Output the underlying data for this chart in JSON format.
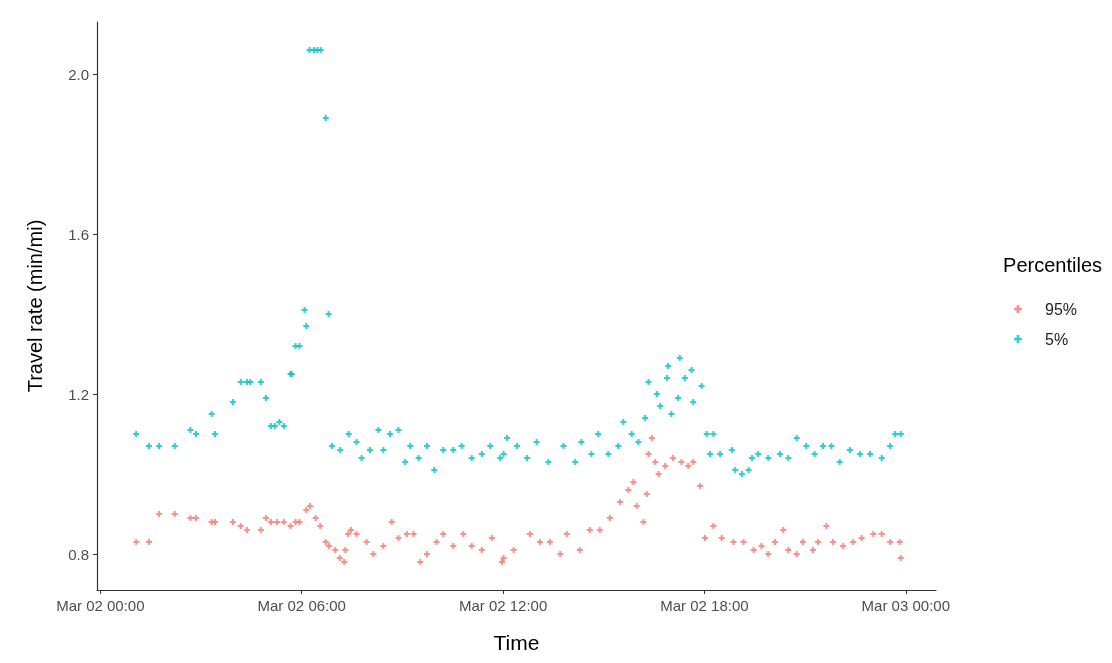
{
  "chart_data": {
    "type": "scatter",
    "xlabel": "Time",
    "ylabel": "Travel rate (min/mi)",
    "legend_title": "Percentiles",
    "legend": "right",
    "marker": "cross",
    "xlim": [
      "--03-01T23:54",
      "--03-03T00:54"
    ],
    "xticks": [
      {
        "value": "--03-02T00:00",
        "label": "Mar 02 00:00"
      },
      {
        "value": "--03-02T06:00",
        "label": "Mar 02 06:00"
      },
      {
        "value": "--03-02T12:00",
        "label": "Mar 02 12:00"
      },
      {
        "value": "--03-02T18:00",
        "label": "Mar 02 18:00"
      },
      {
        "value": "--03-03T00:00",
        "label": "Mar 03 00:00"
      }
    ],
    "ylim": [
      0.71,
      2.13
    ],
    "yticks": [
      0.8,
      1.2,
      1.6,
      {
        "value": 2,
        "label": "2.0"
      }
    ],
    "series": [
      {
        "name": "95%",
        "color": "#f8766d",
        "x": [
          "--03-02T01:04",
          "--03-02T01:27",
          "--03-02T01:45",
          "--03-02T02:13",
          "--03-02T02:41",
          "--03-02T02:51",
          "--03-02T03:19",
          "--03-02T03:25",
          "--03-02T03:57",
          "--03-02T04:11",
          "--03-02T04:22",
          "--03-02T04:47",
          "--03-02T04:56",
          "--03-02T05:05",
          "--03-02T05:16",
          "--03-02T05:28",
          "--03-02T05:40",
          "--03-02T05:49",
          "--03-02T05:56",
          "--03-02T06:08",
          "--03-02T06:15",
          "--03-02T06:25",
          "--03-02T06:33",
          "--03-02T06:43",
          "--03-02T06:49",
          "--03-02T07:00",
          "--03-02T07:08",
          "--03-02T07:16",
          "--03-02T07:18",
          "--03-02T07:23",
          "--03-02T07:28",
          "--03-02T07:38",
          "--03-02T07:56",
          "--03-02T08:08",
          "--03-02T08:26",
          "--03-02T08:41",
          "--03-02T08:53",
          "--03-02T09:08",
          "--03-02T09:20",
          "--03-02T09:32",
          "--03-02T09:44",
          "--03-02T10:01",
          "--03-02T10:13",
          "--03-02T10:31",
          "--03-02T10:49",
          "--03-02T11:04",
          "--03-02T11:22",
          "--03-02T11:40",
          "--03-02T11:58",
          "--03-02T12:01",
          "--03-02T12:19",
          "--03-02T12:48",
          "--03-02T13:06",
          "--03-02T13:24",
          "--03-02T13:42",
          "--03-02T13:54",
          "--03-02T14:17",
          "--03-02T14:35",
          "--03-02T14:53",
          "--03-02T15:11",
          "--03-02T15:29",
          "--03-02T15:44",
          "--03-02T15:53",
          "--03-02T15:59",
          "--03-02T16:11",
          "--03-02T16:17",
          "--03-02T16:20",
          "--03-02T16:26",
          "--03-02T16:32",
          "--03-02T16:38",
          "--03-02T16:50",
          "--03-02T17:04",
          "--03-02T17:19",
          "--03-02T17:31",
          "--03-02T17:40",
          "--03-02T17:52",
          "--03-02T18:01",
          "--03-02T18:16",
          "--03-02T18:31",
          "--03-02T18:52",
          "--03-02T19:10",
          "--03-02T19:28",
          "--03-02T19:42",
          "--03-02T19:54",
          "--03-02T20:06",
          "--03-02T20:21",
          "--03-02T20:30",
          "--03-02T20:45",
          "--03-02T20:56",
          "--03-02T21:14",
          "--03-02T21:23",
          "--03-02T21:38",
          "--03-02T21:50",
          "--03-02T22:08",
          "--03-02T22:26",
          "--03-02T22:41",
          "--03-02T23:02",
          "--03-02T23:17",
          "--03-02T23:32",
          "--03-02T23:49",
          "--03-02T23:51"
        ],
        "values": [
          0.83,
          0.83,
          0.9,
          0.9,
          0.89,
          0.89,
          0.88,
          0.88,
          0.88,
          0.87,
          0.86,
          0.86,
          0.89,
          0.88,
          0.88,
          0.88,
          0.87,
          0.88,
          0.88,
          0.91,
          0.92,
          0.89,
          0.87,
          0.83,
          0.82,
          0.81,
          0.79,
          0.78,
          0.81,
          0.85,
          0.86,
          0.85,
          0.83,
          0.8,
          0.82,
          0.88,
          0.84,
          0.85,
          0.85,
          0.78,
          0.8,
          0.83,
          0.85,
          0.82,
          0.85,
          0.82,
          0.81,
          0.84,
          0.78,
          0.79,
          0.81,
          0.85,
          0.83,
          0.83,
          0.8,
          0.85,
          0.81,
          0.86,
          0.86,
          0.89,
          0.93,
          0.96,
          0.98,
          0.92,
          0.88,
          0.95,
          1.05,
          1.09,
          1.03,
          1.0,
          1.02,
          1.04,
          1.03,
          1.02,
          1.03,
          0.97,
          0.84,
          0.87,
          0.84,
          0.83,
          0.83,
          0.81,
          0.82,
          0.8,
          0.83,
          0.86,
          0.81,
          0.8,
          0.83,
          0.81,
          0.83,
          0.87,
          0.83,
          0.82,
          0.83,
          0.84,
          0.85,
          0.85,
          0.83,
          0.83,
          0.79
        ]
      },
      {
        "name": "5%",
        "color": "#00bfc4",
        "x": [
          "--03-02T01:04",
          "--03-02T01:27",
          "--03-02T01:45",
          "--03-02T02:13",
          "--03-02T02:41",
          "--03-02T02:51",
          "--03-02T03:19",
          "--03-02T03:25",
          "--03-02T03:57",
          "--03-02T04:11",
          "--03-02T04:22",
          "--03-02T04:28",
          "--03-02T04:47",
          "--03-02T04:56",
          "--03-02T05:05",
          "--03-02T05:12",
          "--03-02T05:20",
          "--03-02T05:28",
          "--03-02T05:40",
          "--03-02T05:42",
          "--03-02T05:49",
          "--03-02T05:56",
          "--03-02T06:05",
          "--03-02T06:08",
          "--03-02T06:14",
          "--03-02T06:22",
          "--03-02T06:28",
          "--03-02T06:34",
          "--03-02T06:43",
          "--03-02T06:48",
          "--03-02T06:54",
          "--03-02T07:09",
          "--03-02T07:24",
          "--03-02T07:38",
          "--03-02T07:47",
          "--03-02T08:02",
          "--03-02T08:17",
          "--03-02T08:26",
          "--03-02T08:38",
          "--03-02T08:53",
          "--03-02T09:05",
          "--03-02T09:14",
          "--03-02T09:29",
          "--03-02T09:44",
          "--03-02T09:57",
          "--03-02T10:13",
          "--03-02T10:31",
          "--03-02T10:46",
          "--03-02T11:04",
          "--03-02T11:22",
          "--03-02T11:37",
          "--03-02T11:55",
          "--03-02T12:01",
          "--03-02T12:07",
          "--03-02T12:25",
          "--03-02T12:43",
          "--03-02T13:00",
          "--03-02T13:21",
          "--03-02T13:48",
          "--03-02T14:09",
          "--03-02T14:20",
          "--03-02T14:38",
          "--03-02T14:50",
          "--03-02T15:08",
          "--03-02T15:26",
          "--03-02T15:35",
          "--03-02T15:50",
          "--03-02T16:02",
          "--03-02T16:14",
          "--03-02T16:20",
          "--03-02T16:35",
          "--03-02T16:41",
          "--03-02T16:53",
          "--03-02T16:55",
          "--03-02T17:01",
          "--03-02T17:13",
          "--03-02T17:16",
          "--03-02T17:25",
          "--03-02T17:37",
          "--03-02T17:40",
          "--03-02T17:55",
          "--03-02T18:04",
          "--03-02T18:10",
          "--03-02T18:16",
          "--03-02T18:28",
          "--03-02T18:49",
          "--03-02T18:55",
          "--03-02T19:07",
          "--03-02T19:19",
          "--03-02T19:25",
          "--03-02T19:36",
          "--03-02T19:54",
          "--03-02T20:15",
          "--03-02T20:30",
          "--03-02T20:45",
          "--03-02T21:02",
          "--03-02T21:17",
          "--03-02T21:32",
          "--03-02T21:47",
          "--03-02T22:02",
          "--03-02T22:20",
          "--03-02T22:38",
          "--03-02T22:56",
          "--03-02T23:17",
          "--03-02T23:32",
          "--03-02T23:41",
          "--03-02T23:51"
        ],
        "values": [
          1.1,
          1.07,
          1.07,
          1.07,
          1.11,
          1.1,
          1.15,
          1.1,
          1.18,
          1.23,
          1.23,
          1.23,
          1.23,
          1.19,
          1.12,
          1.12,
          1.13,
          1.12,
          1.25,
          1.25,
          1.32,
          1.32,
          1.41,
          1.37,
          2.06,
          2.06,
          2.06,
          2.06,
          1.89,
          1.4,
          1.07,
          1.06,
          1.1,
          1.08,
          1.04,
          1.06,
          1.11,
          1.06,
          1.1,
          1.11,
          1.03,
          1.07,
          1.04,
          1.07,
          1.01,
          1.06,
          1.06,
          1.07,
          1.04,
          1.05,
          1.07,
          1.04,
          1.05,
          1.09,
          1.07,
          1.04,
          1.08,
          1.03,
          1.07,
          1.03,
          1.08,
          1.05,
          1.1,
          1.05,
          1.07,
          1.13,
          1.1,
          1.08,
          1.14,
          1.23,
          1.2,
          1.17,
          1.24,
          1.27,
          1.15,
          1.19,
          1.29,
          1.24,
          1.26,
          1.18,
          1.22,
          1.1,
          1.05,
          1.1,
          1.05,
          1.06,
          1.01,
          1.0,
          1.01,
          1.04,
          1.05,
          1.04,
          1.05,
          1.04,
          1.09,
          1.07,
          1.05,
          1.07,
          1.07,
          1.03,
          1.06,
          1.05,
          1.05,
          1.04,
          1.07,
          1.1,
          1.1
        ]
      }
    ]
  }
}
